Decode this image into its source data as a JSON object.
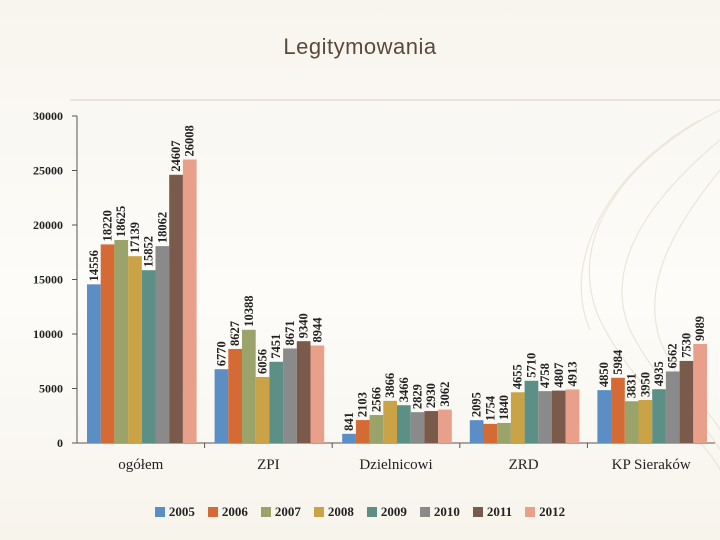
{
  "slide": {
    "title": "Legitymowania"
  },
  "chart_data": {
    "type": "bar",
    "title": "Legitymowania",
    "categories": [
      "ogółem",
      "ZPI",
      "Dzielnicowi",
      "ZRD",
      "KP Sieraków"
    ],
    "ylim": [
      0,
      30000
    ],
    "yticks": [
      0,
      5000,
      10000,
      15000,
      20000,
      25000,
      30000
    ],
    "series": [
      {
        "name": "2005",
        "color": "#5b8ec4",
        "values": [
          14556,
          6770,
          841,
          2095,
          4850
        ]
      },
      {
        "name": "2006",
        "color": "#d46a34",
        "values": [
          18220,
          8627,
          2103,
          1754,
          5984
        ]
      },
      {
        "name": "2007",
        "color": "#9aa36a",
        "values": [
          18625,
          10388,
          2566,
          1840,
          3831
        ]
      },
      {
        "name": "2008",
        "color": "#c9a345",
        "values": [
          17139,
          6056,
          3866,
          4655,
          3950
        ]
      },
      {
        "name": "2009",
        "color": "#5c8f85",
        "values": [
          15852,
          7451,
          3466,
          5710,
          4935
        ]
      },
      {
        "name": "2010",
        "color": "#8a8a8a",
        "values": [
          18062,
          8671,
          2829,
          4758,
          6562
        ]
      },
      {
        "name": "2011",
        "color": "#7a5a4a",
        "values": [
          24607,
          9340,
          2930,
          4807,
          7530
        ]
      },
      {
        "name": "2012",
        "color": "#e8a08a",
        "values": [
          26008,
          8944,
          3062,
          4913,
          9089
        ]
      }
    ],
    "xlabel": "",
    "ylabel": "",
    "legend_position": "bottom",
    "grid": false
  }
}
